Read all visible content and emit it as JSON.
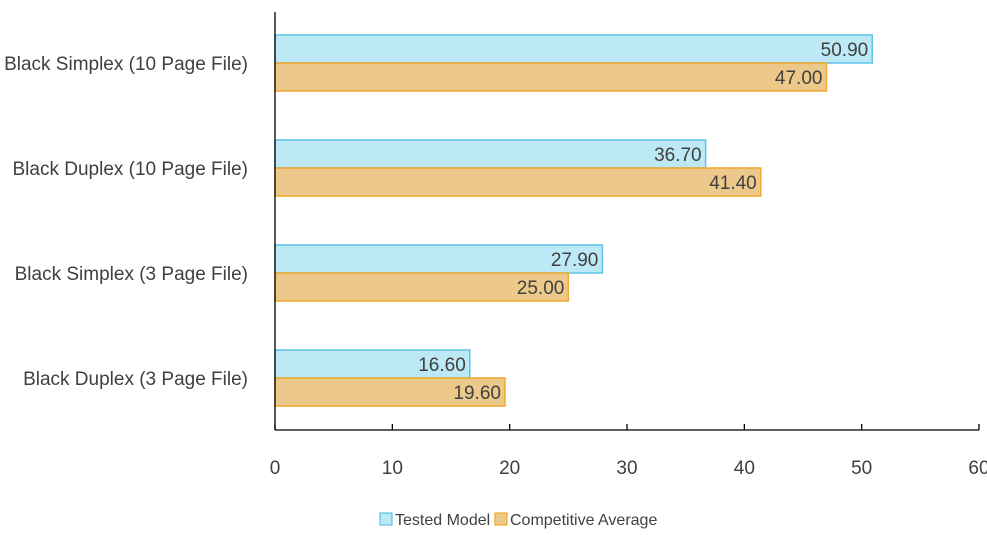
{
  "chart_data": {
    "type": "bar",
    "orientation": "horizontal",
    "title": "",
    "xlabel": "",
    "ylabel": "",
    "categories": [
      "Black Simplex  (10 Page File)",
      "Black Duplex  (10 Page File)",
      "Black Simplex  (3 Page File)",
      "Black Duplex  (3 Page File)"
    ],
    "series": [
      {
        "name": "Tested Model",
        "values": [
          50.9,
          36.7,
          27.9,
          16.6
        ],
        "labels": [
          "50.90",
          "36.70",
          "27.90",
          "16.60"
        ],
        "fill": "#bde8f5",
        "stroke": "#5bc3e8"
      },
      {
        "name": "Competitive Average",
        "values": [
          47.0,
          41.4,
          25.0,
          19.6
        ],
        "labels": [
          "47.00",
          "41.40",
          "25.00",
          "19.60"
        ],
        "fill": "#ecc98a",
        "stroke": "#f0a92c"
      }
    ],
    "xlim": [
      0,
      60
    ],
    "xticks": [
      0,
      10,
      20,
      30,
      40,
      50,
      60
    ],
    "xtick_labels": [
      "0",
      "10",
      "20",
      "30",
      "40",
      "50",
      "60"
    ],
    "grid": false,
    "legend": "bottom-center"
  }
}
